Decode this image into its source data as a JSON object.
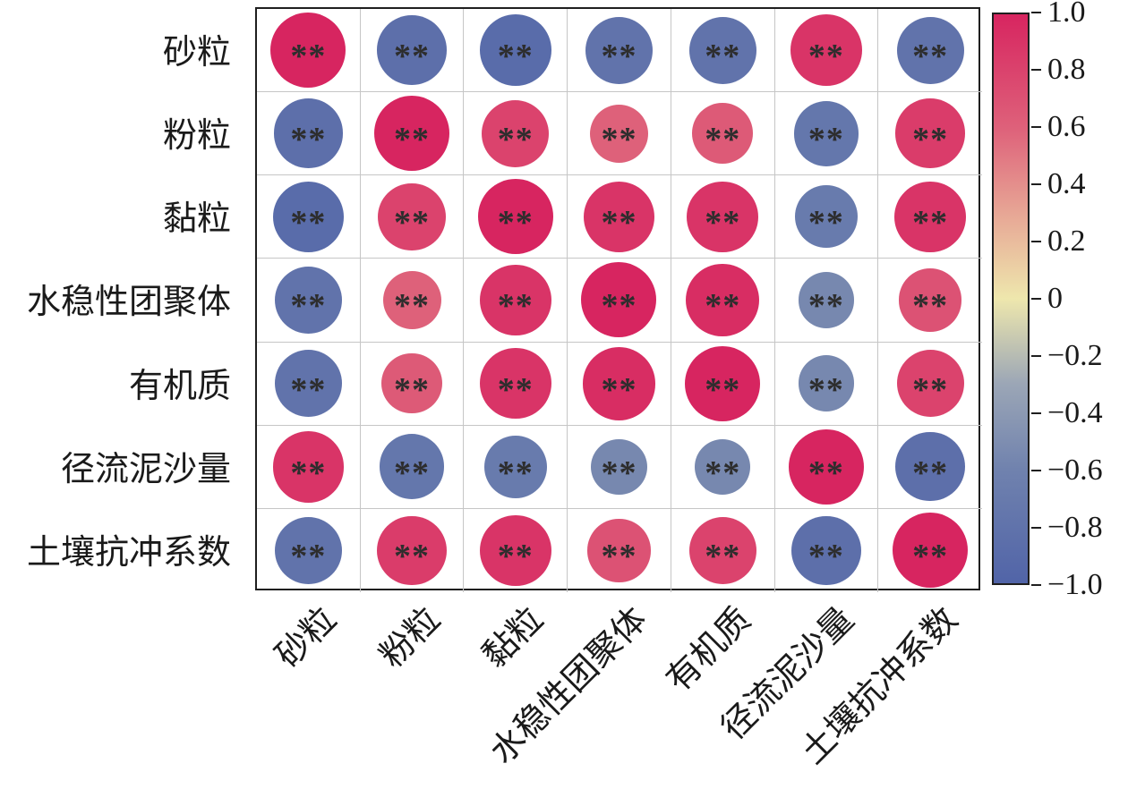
{
  "chart_data": {
    "type": "heatmap",
    "subtype": "correlation-matrix-circles",
    "variables": [
      "砂粒",
      "粉粒",
      "黏粒",
      "水稳性团聚体",
      "有机质",
      "径流泥沙量",
      "土壤抗冲系数"
    ],
    "matrix": [
      [
        1.0,
        -0.85,
        -0.9,
        -0.8,
        -0.8,
        0.9,
        -0.8
      ],
      [
        -0.85,
        1.0,
        0.8,
        0.6,
        0.65,
        -0.75,
        0.85
      ],
      [
        -0.9,
        0.8,
        1.0,
        0.9,
        0.9,
        -0.7,
        0.9
      ],
      [
        -0.8,
        0.6,
        0.9,
        1.0,
        0.95,
        -0.55,
        0.7
      ],
      [
        -0.8,
        0.65,
        0.9,
        0.95,
        1.0,
        -0.55,
        0.8
      ],
      [
        0.9,
        -0.75,
        -0.7,
        -0.55,
        -0.55,
        1.0,
        -0.85
      ],
      [
        -0.8,
        0.85,
        0.9,
        0.7,
        0.8,
        -0.85,
        1.0
      ]
    ],
    "significance_label": "**",
    "legend_position": "right",
    "grid": true,
    "colorbar": {
      "min": -1,
      "max": 1,
      "tick_labels": [
        "1.0",
        "0.8",
        "0.6",
        "0.4",
        "0.2",
        "0",
        "−0.2",
        "−0.4",
        "−0.6",
        "−0.8",
        "−1.0"
      ]
    },
    "colormap": [
      {
        "v": -1.0,
        "color": "#5164a8"
      },
      {
        "v": -0.6,
        "color": "#7082ae"
      },
      {
        "v": -0.3,
        "color": "#9ba6b6"
      },
      {
        "v": 0.0,
        "color": "#eee7ad"
      },
      {
        "v": 0.3,
        "color": "#e7a695"
      },
      {
        "v": 0.6,
        "color": "#de617a"
      },
      {
        "v": 1.0,
        "color": "#d72560"
      }
    ],
    "colors": {
      "grid_line": "#c6c6c6",
      "border": "#1f1f1f",
      "stars": "#2d2d2d",
      "background": "#ffffff"
    }
  }
}
